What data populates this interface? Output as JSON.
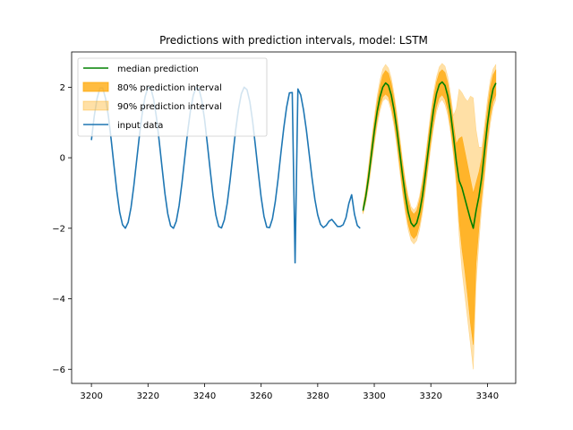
{
  "chart_data": {
    "type": "line",
    "title": "Predictions with prediction intervals, model: LSTM",
    "xlabel": "",
    "ylabel": "",
    "xlim": [
      3193,
      3350
    ],
    "ylim": [
      -6.4,
      3.0
    ],
    "xticks": [
      3200,
      3220,
      3240,
      3260,
      3280,
      3300,
      3320,
      3340
    ],
    "yticks": [
      -6,
      -4,
      -2,
      0,
      2
    ],
    "grid": false,
    "legend_position": "top-left",
    "legend": [
      {
        "label": "median prediction",
        "kind": "line",
        "color": "#008000"
      },
      {
        "label": "80% prediction interval",
        "kind": "patch",
        "color": "#ffa500",
        "opacity": 0.75
      },
      {
        "label": "90% prediction interval",
        "kind": "patch",
        "color": "#ffa500",
        "opacity": 0.35
      },
      {
        "label": "input data",
        "kind": "line",
        "color": "#1f77b4"
      }
    ],
    "series": [
      {
        "name": "input data",
        "color": "#1f77b4",
        "x": [
          3200,
          3201,
          3202,
          3203,
          3204,
          3205,
          3206,
          3207,
          3208,
          3209,
          3210,
          3211,
          3212,
          3213,
          3214,
          3215,
          3216,
          3217,
          3218,
          3219,
          3220,
          3221,
          3222,
          3223,
          3224,
          3225,
          3226,
          3227,
          3228,
          3229,
          3230,
          3231,
          3232,
          3233,
          3234,
          3235,
          3236,
          3237,
          3238,
          3239,
          3240,
          3241,
          3242,
          3243,
          3244,
          3245,
          3246,
          3247,
          3248,
          3249,
          3250,
          3251,
          3252,
          3253,
          3254,
          3255,
          3256,
          3257,
          3258,
          3259,
          3260,
          3261,
          3262,
          3263,
          3264,
          3265,
          3266,
          3267,
          3268,
          3269,
          3270,
          3271,
          3272,
          3273,
          3274,
          3275,
          3276,
          3277,
          3278,
          3279,
          3280,
          3281,
          3282,
          3283,
          3284,
          3285,
          3286,
          3287,
          3288,
          3289,
          3290,
          3291,
          3292,
          3293,
          3294,
          3295
        ],
        "y": [
          0.5,
          1.18,
          1.68,
          1.98,
          1.98,
          1.68,
          1.18,
          0.5,
          -0.24,
          -0.96,
          -1.55,
          -1.9,
          -2.0,
          -1.83,
          -1.41,
          -0.79,
          -0.07,
          0.65,
          1.28,
          1.74,
          1.99,
          1.97,
          1.66,
          1.14,
          0.44,
          -0.3,
          -1.02,
          -1.59,
          -1.93,
          -2.0,
          -1.8,
          -1.36,
          -0.72,
          0.0,
          0.72,
          1.33,
          1.77,
          1.99,
          1.96,
          1.63,
          1.09,
          0.38,
          -0.36,
          -1.07,
          -1.63,
          -1.95,
          -1.99,
          -1.76,
          -1.3,
          -0.66,
          0.07,
          0.79,
          1.38,
          1.81,
          2.0,
          1.93,
          1.59,
          1.03,
          0.32,
          -0.42,
          -1.12,
          -1.66,
          -1.97,
          -1.98,
          -1.73,
          -1.25,
          -0.6,
          0.14,
          0.84,
          1.43,
          1.84,
          1.85,
          -2.98,
          1.95,
          1.78,
          1.35,
          0.78,
          0.1,
          -0.58,
          -1.18,
          -1.62,
          -1.89,
          -1.98,
          -1.92,
          -1.8,
          -1.75,
          -1.85,
          -1.95,
          -1.95,
          -1.9,
          -1.7,
          -1.3,
          -1.05,
          -1.6,
          -1.92,
          -2.0
        ],
        "note": ""
      },
      {
        "name": "median prediction",
        "color": "#008000",
        "x": [
          3296,
          3297,
          3298,
          3299,
          3300,
          3301,
          3302,
          3303,
          3304,
          3305,
          3306,
          3307,
          3308,
          3309,
          3310,
          3311,
          3312,
          3313,
          3314,
          3315,
          3316,
          3317,
          3318,
          3319,
          3320,
          3321,
          3322,
          3323,
          3324,
          3325,
          3326,
          3327,
          3328,
          3329,
          3330,
          3331,
          3332,
          3333,
          3334,
          3335,
          3336,
          3337,
          3338,
          3339,
          3340,
          3341,
          3342,
          3343
        ],
        "y": [
          -1.5,
          -1.1,
          -0.55,
          0.1,
          0.75,
          1.3,
          1.72,
          2.0,
          2.12,
          2.05,
          1.78,
          1.35,
          0.8,
          0.15,
          -0.5,
          -1.08,
          -1.55,
          -1.85,
          -1.95,
          -1.85,
          -1.55,
          -1.1,
          -0.5,
          0.15,
          0.8,
          1.38,
          1.82,
          2.08,
          2.15,
          2.05,
          1.75,
          1.25,
          0.6,
          -0.1,
          -0.65,
          -0.85,
          -1.15,
          -1.45,
          -1.75,
          -2.0,
          -1.5,
          -1.1,
          -0.55,
          0.2,
          0.95,
          1.55,
          1.95,
          2.12
        ]
      }
    ],
    "intervals": [
      {
        "name": "80% prediction interval",
        "color": "#ffa500",
        "opacity": 0.75,
        "x": [
          3296,
          3297,
          3298,
          3299,
          3300,
          3301,
          3302,
          3303,
          3304,
          3305,
          3306,
          3307,
          3308,
          3309,
          3310,
          3311,
          3312,
          3313,
          3314,
          3315,
          3316,
          3317,
          3318,
          3319,
          3320,
          3321,
          3322,
          3323,
          3324,
          3325,
          3326,
          3327,
          3328,
          3329,
          3330,
          3331,
          3332,
          3333,
          3334,
          3335,
          3336,
          3337,
          3338,
          3339,
          3340,
          3341,
          3342,
          3343
        ],
        "lower": [
          -1.55,
          -1.2,
          -0.7,
          -0.1,
          0.5,
          1.05,
          1.45,
          1.72,
          1.8,
          1.72,
          1.45,
          1.02,
          0.45,
          -0.22,
          -0.88,
          -1.45,
          -1.9,
          -2.2,
          -2.3,
          -2.2,
          -1.9,
          -1.45,
          -0.85,
          -0.2,
          0.45,
          1.0,
          1.45,
          1.7,
          1.78,
          1.65,
          1.35,
          0.85,
          0.2,
          -0.6,
          -1.8,
          -2.6,
          -3.2,
          -3.9,
          -4.7,
          -5.3,
          -3.0,
          -2.0,
          -1.1,
          -0.35,
          0.5,
          1.15,
          1.58,
          1.78
        ],
        "upper": [
          -1.42,
          -0.95,
          -0.35,
          0.35,
          1.0,
          1.58,
          2.02,
          2.35,
          2.48,
          2.4,
          2.12,
          1.68,
          1.12,
          0.48,
          -0.18,
          -0.75,
          -1.2,
          -1.5,
          -1.6,
          -1.5,
          -1.2,
          -0.75,
          -0.15,
          0.5,
          1.15,
          1.72,
          2.15,
          2.42,
          2.5,
          2.42,
          2.12,
          1.62,
          0.98,
          0.4,
          0.55,
          0.6,
          0.2,
          -0.2,
          -0.6,
          -1.0,
          -0.7,
          -0.4,
          0.0,
          0.7,
          1.4,
          2.0,
          2.35,
          2.5
        ]
      },
      {
        "name": "90% prediction interval",
        "color": "#ffa500",
        "opacity": 0.35,
        "x": [
          3296,
          3297,
          3298,
          3299,
          3300,
          3301,
          3302,
          3303,
          3304,
          3305,
          3306,
          3307,
          3308,
          3309,
          3310,
          3311,
          3312,
          3313,
          3314,
          3315,
          3316,
          3317,
          3318,
          3319,
          3320,
          3321,
          3322,
          3323,
          3324,
          3325,
          3326,
          3327,
          3328,
          3329,
          3330,
          3331,
          3332,
          3333,
          3334,
          3335,
          3336,
          3337,
          3338,
          3339,
          3340,
          3341,
          3342,
          3343
        ],
        "lower": [
          -1.6,
          -1.3,
          -0.85,
          -0.25,
          0.35,
          0.9,
          1.32,
          1.6,
          1.68,
          1.6,
          1.32,
          0.88,
          0.3,
          -0.38,
          -1.02,
          -1.6,
          -2.05,
          -2.35,
          -2.45,
          -2.35,
          -2.05,
          -1.6,
          -1.0,
          -0.35,
          0.3,
          0.85,
          1.3,
          1.55,
          1.65,
          1.5,
          1.2,
          0.7,
          0.05,
          -0.8,
          -2.2,
          -3.2,
          -3.9,
          -4.6,
          -5.3,
          -6.0,
          -3.6,
          -2.4,
          -1.4,
          -0.6,
          0.3,
          0.95,
          1.42,
          1.65
        ],
        "upper": [
          -1.35,
          -0.85,
          -0.2,
          0.5,
          1.15,
          1.75,
          2.2,
          2.52,
          2.65,
          2.55,
          2.28,
          1.82,
          1.28,
          0.62,
          -0.05,
          -0.62,
          -1.08,
          -1.38,
          -1.48,
          -1.38,
          -1.08,
          -0.62,
          -0.02,
          0.65,
          1.3,
          1.88,
          2.3,
          2.58,
          2.68,
          2.6,
          2.3,
          1.8,
          1.2,
          1.4,
          1.95,
          1.85,
          1.7,
          1.6,
          1.75,
          1.7,
          0.8,
          0.3,
          0.3,
          0.95,
          1.65,
          2.2,
          2.52,
          2.65
        ]
      }
    ]
  }
}
